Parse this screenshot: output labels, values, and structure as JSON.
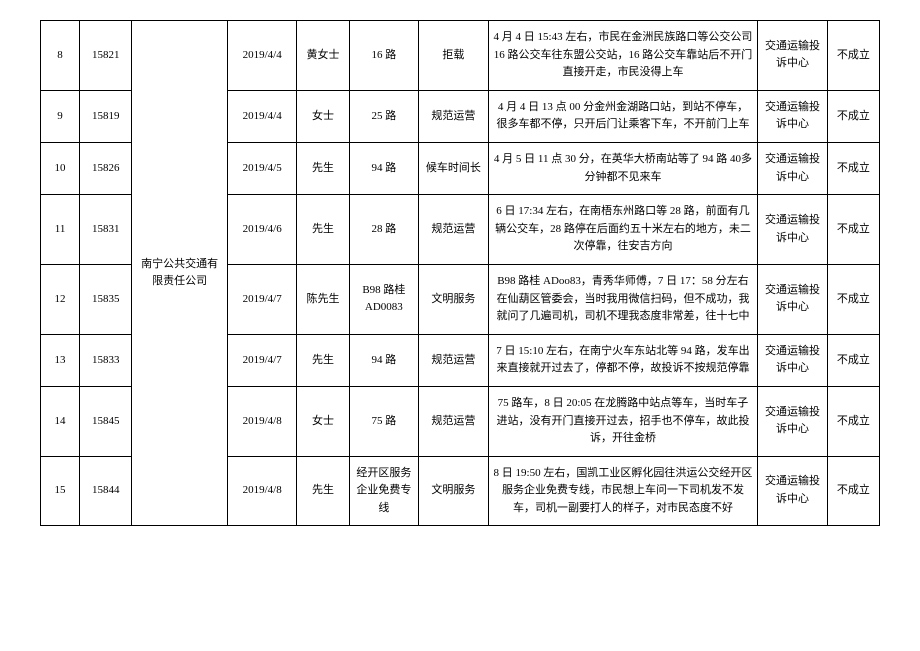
{
  "table": {
    "company_cell": "南宁公共交通有限责任公司",
    "rows": [
      {
        "idx": "8",
        "id": "15821",
        "date": "2019/4/4",
        "person": "黄女士",
        "route": "16 路",
        "type": "拒载",
        "desc": "4 月 4 日 15:43 左右，市民在金洲民族路口等公交公司 16 路公交车往东盟公交站，16 路公交车靠站后不开门直接开走，市民没得上车",
        "dept": "交通运输投诉中心",
        "result": "不成立"
      },
      {
        "idx": "9",
        "id": "15819",
        "date": "2019/4/4",
        "person": "女士",
        "route": "25 路",
        "type": "规范运营",
        "desc": "4 月 4 日 13 点 00 分金州金湖路口站，到站不停车，很多车都不停，只开后门让乘客下车，不开前门上车",
        "dept": "交通运输投诉中心",
        "result": "不成立"
      },
      {
        "idx": "10",
        "id": "15826",
        "date": "2019/4/5",
        "person": "先生",
        "route": "94 路",
        "type": "候车时间长",
        "desc": "4 月 5 日 11 点 30 分，在英华大桥南站等了 94 路 40多分钟都不见来车",
        "dept": "交通运输投诉中心",
        "result": "不成立"
      },
      {
        "idx": "11",
        "id": "15831",
        "date": "2019/4/6",
        "person": "先生",
        "route": "28 路",
        "type": "规范运营",
        "desc": "6 日 17:34 左右，在南梧东州路口等 28 路，前面有几辆公交车，28 路停在后面约五十米左右的地方，未二次停靠，往安吉方向",
        "dept": "交通运输投诉中心",
        "result": "不成立"
      },
      {
        "idx": "12",
        "id": "15835",
        "date": "2019/4/7",
        "person": "陈先生",
        "route": "B98 路桂AD0083",
        "type": "文明服务",
        "desc": "B98 路桂 ADoo83，青秀华师傅，7 日 17：58 分左右在仙葫区管委会，当时我用微信扫码，但不成功，我就问了几遍司机，司机不理我态度非常差，往十七中",
        "dept": "交通运输投诉中心",
        "result": "不成立"
      },
      {
        "idx": "13",
        "id": "15833",
        "date": "2019/4/7",
        "person": "先生",
        "route": "94 路",
        "type": "规范运营",
        "desc": "7 日 15:10 左右，在南宁火车东站北等 94 路，发车出来直接就开过去了，停都不停，故投诉不按规范停靠",
        "dept": "交通运输投诉中心",
        "result": "不成立"
      },
      {
        "idx": "14",
        "id": "15845",
        "date": "2019/4/8",
        "person": "女士",
        "route": "75 路",
        "type": "规范运营",
        "desc": "75 路车，8 日 20:05 在龙腾路中站点等车，当时车子进站，没有开门直接开过去，招手也不停车，故此投诉，开往金桥",
        "dept": "交通运输投诉中心",
        "result": "不成立"
      },
      {
        "idx": "15",
        "id": "15844",
        "date": "2019/4/8",
        "person": "先生",
        "route": "经开区服务企业免费专线",
        "type": "文明服务",
        "desc": "8 日 19:50 左右，国凯工业区孵化园往洪运公交经开区服务企业免费专线，市民想上车问一下司机发不发车，司机一副要打人的样子，对市民态度不好",
        "dept": "交通运输投诉中心",
        "result": "不成立"
      }
    ]
  }
}
